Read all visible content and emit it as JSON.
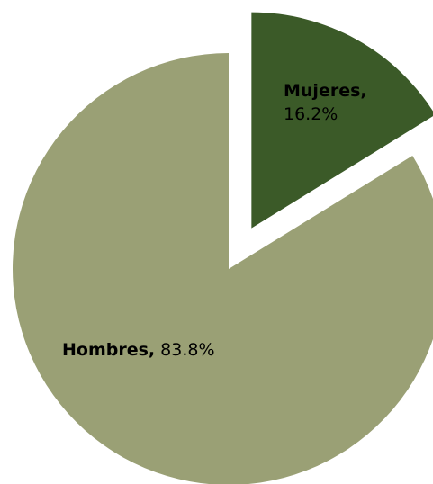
{
  "chart_data": {
    "type": "pie",
    "title": "",
    "slices": [
      {
        "name": "Hombres",
        "value": 83.8,
        "display": "83.8%",
        "color": "#9aa075",
        "exploded": false
      },
      {
        "name": "Mujeres",
        "value": 16.2,
        "display": "16.2%",
        "color": "#3b5a28",
        "exploded": true
      }
    ],
    "label_separator": ",",
    "legend": "none"
  }
}
